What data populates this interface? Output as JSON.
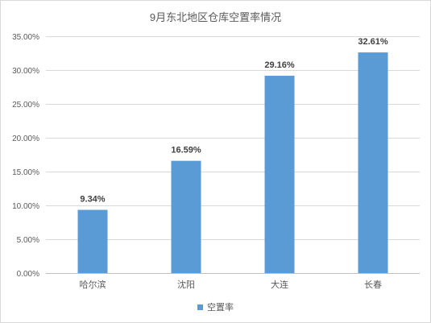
{
  "chart_data": {
    "type": "bar",
    "title": "9月东北地区仓库空置率情况",
    "categories": [
      "哈尔滨",
      "沈阳",
      "大连",
      "长春"
    ],
    "series": [
      {
        "name": "空置率",
        "values": [
          9.34,
          16.59,
          29.16,
          32.61
        ],
        "color": "#5b9bd5"
      }
    ],
    "data_labels": [
      "9.34%",
      "16.59%",
      "29.16%",
      "32.61%"
    ],
    "ylim": [
      0,
      35
    ],
    "yticks": [
      0,
      5,
      10,
      15,
      20,
      25,
      30,
      35
    ],
    "ytick_labels": [
      "0.00%",
      "5.00%",
      "10.00%",
      "15.00%",
      "20.00%",
      "25.00%",
      "30.00%",
      "35.00%"
    ],
    "grid": true,
    "legend_position": "bottom",
    "xlabel": "",
    "ylabel": ""
  }
}
